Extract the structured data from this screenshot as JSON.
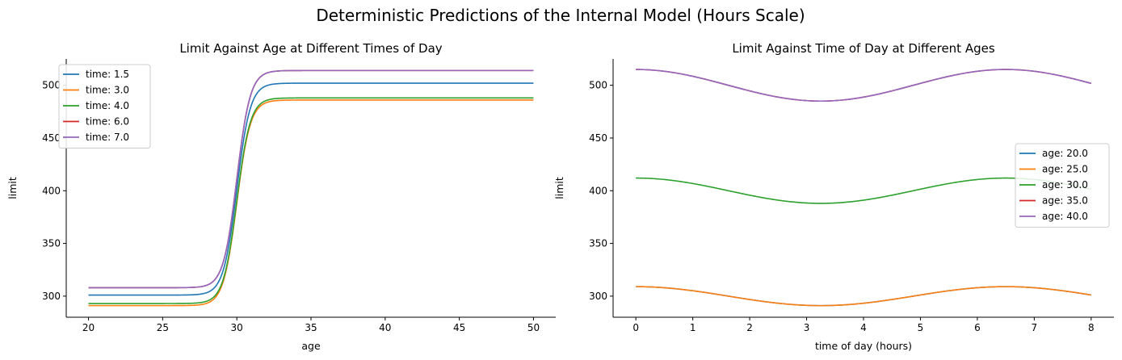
{
  "figure": {
    "suptitle": "Deterministic Predictions of the Internal Model (Hours Scale)"
  },
  "colors": {
    "blue": "#1f77b4",
    "orange": "#ff7f0e",
    "green": "#2ca02c",
    "red": "#d62728",
    "purple": "#9467bd"
  },
  "chart_data": [
    {
      "type": "line",
      "title": "Limit Against Age at Different Times of Day",
      "xlabel": "age",
      "ylabel": "limit",
      "xlim": [
        18.5,
        51.5
      ],
      "ylim": [
        280,
        525
      ],
      "xticks": [
        20,
        25,
        30,
        35,
        40,
        45,
        50
      ],
      "yticks": [
        300,
        350,
        400,
        450,
        500
      ],
      "grid": false,
      "legend_position": "upper-left",
      "x_range": [
        20,
        50
      ],
      "series": [
        {
          "name": "time: 1.5",
          "color": "#1f77b4",
          "low": 301,
          "high": 502,
          "midpoint": 30.0,
          "steepness": 2.2
        },
        {
          "name": "time: 3.0",
          "color": "#ff7f0e",
          "low": 291,
          "high": 486,
          "midpoint": 30.0,
          "steepness": 2.2
        },
        {
          "name": "time: 4.0",
          "color": "#2ca02c",
          "low": 293,
          "high": 488,
          "midpoint": 30.0,
          "steepness": 2.2
        },
        {
          "name": "time: 6.0",
          "color": "#d62728",
          "low": 308,
          "high": 514,
          "midpoint": 30.0,
          "steepness": 2.2
        },
        {
          "name": "time: 7.0",
          "color": "#9467bd",
          "low": 308,
          "high": 514,
          "midpoint": 30.0,
          "steepness": 2.2
        }
      ]
    },
    {
      "type": "line",
      "title": "Limit Against Time of Day at Different Ages",
      "xlabel": "time of day (hours)",
      "ylabel": "limit",
      "xlim": [
        -0.4,
        8.4
      ],
      "ylim": [
        280,
        525
      ],
      "xticks": [
        0,
        1,
        2,
        3,
        4,
        5,
        6,
        7,
        8
      ],
      "yticks": [
        300,
        350,
        400,
        450,
        500
      ],
      "grid": false,
      "legend_position": "center-right",
      "x_range": [
        0,
        8
      ],
      "series": [
        {
          "name": "age: 20.0",
          "color": "#1f77b4",
          "mean": 300,
          "amplitude": 9,
          "period": 6.5,
          "peak_at": 0.0
        },
        {
          "name": "age: 25.0",
          "color": "#ff7f0e",
          "mean": 300,
          "amplitude": 9,
          "period": 6.5,
          "peak_at": 0.0
        },
        {
          "name": "age: 30.0",
          "color": "#2ca02c",
          "mean": 400,
          "amplitude": 12,
          "period": 6.5,
          "peak_at": 0.0
        },
        {
          "name": "age: 35.0",
          "color": "#d62728",
          "mean": 500,
          "amplitude": 15,
          "period": 6.5,
          "peak_at": 0.0
        },
        {
          "name": "age: 40.0",
          "color": "#9467bd",
          "mean": 500,
          "amplitude": 15,
          "period": 6.5,
          "peak_at": 0.0
        }
      ]
    }
  ]
}
